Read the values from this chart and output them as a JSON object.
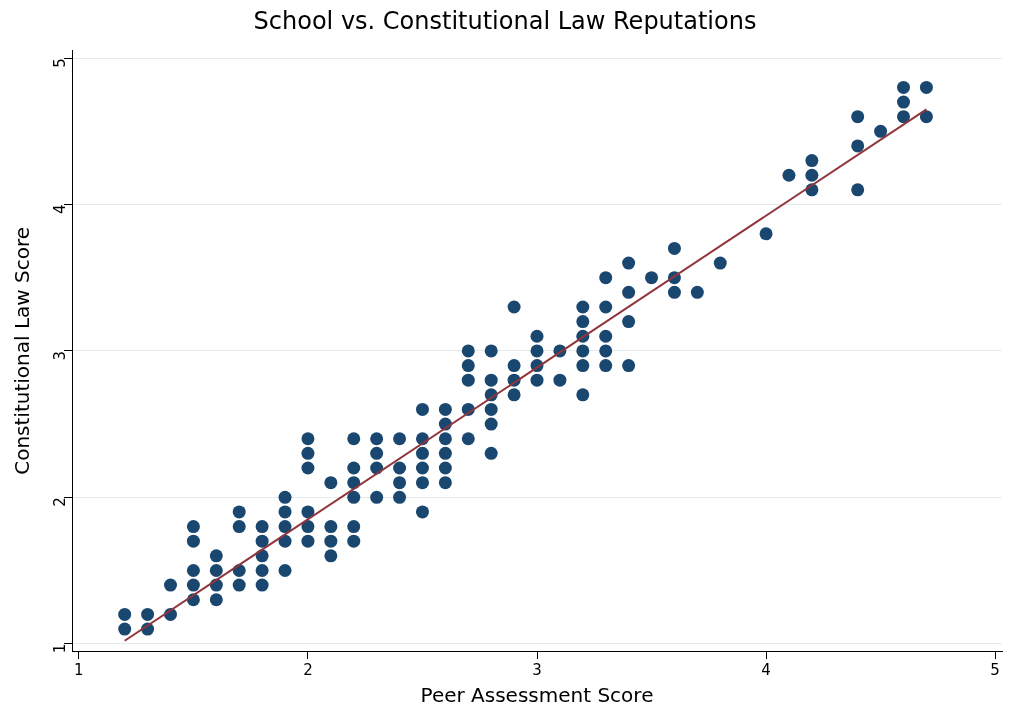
{
  "chart_data": {
    "type": "scatter",
    "title": "School vs. Constitutional Law Reputations",
    "xlabel": "Peer Assessment Score",
    "ylabel": "Constitutional Law Score",
    "xlim": [
      0.97,
      5.03
    ],
    "ylim": [
      0.95,
      5.05
    ],
    "xticks": [
      1,
      2,
      3,
      4,
      5
    ],
    "yticks": [
      1,
      2,
      3,
      4,
      5
    ],
    "grid": "y",
    "legend": false,
    "series": [
      {
        "marker": "circle",
        "color": "#1a476f",
        "x": [
          1.2,
          1.2,
          1.3,
          1.3,
          1.4,
          1.4,
          1.5,
          1.5,
          1.5,
          1.5,
          1.5,
          1.6,
          1.6,
          1.6,
          1.6,
          1.7,
          1.7,
          1.7,
          1.7,
          1.8,
          1.8,
          1.8,
          1.8,
          1.8,
          1.9,
          1.9,
          1.9,
          1.9,
          1.9,
          2.0,
          2.0,
          2.0,
          2.0,
          2.0,
          2.0,
          2.1,
          2.1,
          2.1,
          2.1,
          2.2,
          2.2,
          2.2,
          2.2,
          2.2,
          2.2,
          2.3,
          2.3,
          2.3,
          2.3,
          2.4,
          2.4,
          2.4,
          2.4,
          2.5,
          2.5,
          2.5,
          2.5,
          2.5,
          2.5,
          2.6,
          2.6,
          2.6,
          2.6,
          2.6,
          2.6,
          2.7,
          2.7,
          2.7,
          2.7,
          2.7,
          2.8,
          2.8,
          2.8,
          2.8,
          2.8,
          2.8,
          2.9,
          2.9,
          2.9,
          2.9,
          3.0,
          3.0,
          3.0,
          3.0,
          3.1,
          3.1,
          3.2,
          3.2,
          3.2,
          3.2,
          3.2,
          3.2,
          3.3,
          3.3,
          3.3,
          3.3,
          3.3,
          3.4,
          3.4,
          3.4,
          3.4,
          3.5,
          3.6,
          3.6,
          3.6,
          3.7,
          3.8,
          4.0,
          4.1,
          4.2,
          4.2,
          4.2,
          4.4,
          4.4,
          4.4,
          4.5,
          4.6,
          4.6,
          4.6,
          4.7,
          4.7
        ],
        "values": [
          1.2,
          1.1,
          1.2,
          1.1,
          1.4,
          1.2,
          1.8,
          1.7,
          1.5,
          1.4,
          1.3,
          1.6,
          1.5,
          1.4,
          1.3,
          1.9,
          1.8,
          1.5,
          1.4,
          1.8,
          1.7,
          1.6,
          1.5,
          1.4,
          2.0,
          1.9,
          1.8,
          1.7,
          1.5,
          2.4,
          2.3,
          2.2,
          1.9,
          1.8,
          1.7,
          2.1,
          1.8,
          1.7,
          1.6,
          2.4,
          2.2,
          2.1,
          2.0,
          1.8,
          1.7,
          2.4,
          2.3,
          2.2,
          2.0,
          2.4,
          2.2,
          2.1,
          2.0,
          2.6,
          2.4,
          2.3,
          2.2,
          2.1,
          1.9,
          2.6,
          2.5,
          2.4,
          2.3,
          2.2,
          2.1,
          3.0,
          2.9,
          2.8,
          2.6,
          2.4,
          3.0,
          2.8,
          2.7,
          2.6,
          2.5,
          2.3,
          3.3,
          2.9,
          2.8,
          2.7,
          3.1,
          3.0,
          2.9,
          2.8,
          3.0,
          2.8,
          3.3,
          3.2,
          3.1,
          3.0,
          2.9,
          2.7,
          3.5,
          3.3,
          3.1,
          3.0,
          2.9,
          3.6,
          3.4,
          3.2,
          2.9,
          3.5,
          3.7,
          3.5,
          3.4,
          3.4,
          3.6,
          3.8,
          4.2,
          4.3,
          4.2,
          4.1,
          4.6,
          4.4,
          4.1,
          4.5,
          4.8,
          4.7,
          4.6,
          4.8,
          4.6
        ]
      },
      {
        "type": "line",
        "marker": "none",
        "color": "#90353b",
        "x": [
          1.2,
          4.7
        ],
        "values": [
          1.02,
          4.65
        ]
      }
    ]
  }
}
